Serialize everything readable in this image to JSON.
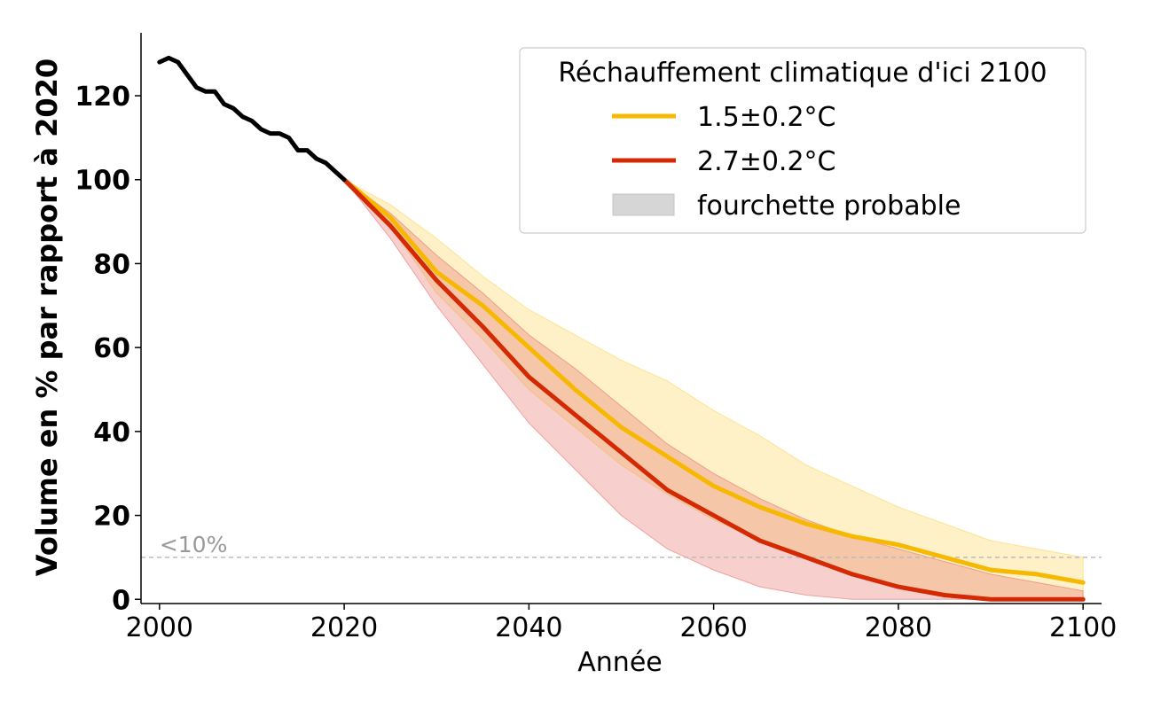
{
  "chart_data": {
    "type": "line",
    "xlabel": "Année",
    "ylabel": "Volume en % par rapport à 2020",
    "xlim": [
      1998,
      2102
    ],
    "ylim": [
      -1,
      135
    ],
    "x_ticks": [
      "2000",
      "2020",
      "2040",
      "2060",
      "2080",
      "2100"
    ],
    "y_ticks": [
      "0",
      "20",
      "40",
      "60",
      "80",
      "100",
      "120"
    ],
    "grid": false,
    "legend": {
      "title": "Réchauffement climatique d'ici 2100",
      "placement": "top-right",
      "entries": [
        "1.5±0.2°C",
        "2.7±0.2°C",
        "fourchette probable"
      ]
    },
    "threshold": {
      "y": 10,
      "label": "<10%"
    },
    "historical": {
      "color": "#000000",
      "points": [
        [
          2000,
          128
        ],
        [
          2001,
          129
        ],
        [
          2002,
          128
        ],
        [
          2003,
          125
        ],
        [
          2004,
          122
        ],
        [
          2005,
          121
        ],
        [
          2006,
          121
        ],
        [
          2007,
          118
        ],
        [
          2008,
          117
        ],
        [
          2009,
          115
        ],
        [
          2010,
          114
        ],
        [
          2011,
          112
        ],
        [
          2012,
          111
        ],
        [
          2013,
          111
        ],
        [
          2014,
          110
        ],
        [
          2015,
          107
        ],
        [
          2016,
          107
        ],
        [
          2017,
          105
        ],
        [
          2018,
          104
        ],
        [
          2019,
          102
        ],
        [
          2020,
          100
        ]
      ]
    },
    "series": [
      {
        "name": "1.5±0.2°C",
        "color": "#F6B800",
        "band_color": "#FBD760",
        "points": [
          [
            2020,
            100
          ],
          [
            2025,
            91
          ],
          [
            2030,
            78
          ],
          [
            2035,
            70
          ],
          [
            2040,
            60
          ],
          [
            2045,
            50
          ],
          [
            2050,
            41
          ],
          [
            2055,
            34
          ],
          [
            2060,
            27
          ],
          [
            2065,
            22
          ],
          [
            2070,
            18
          ],
          [
            2075,
            15
          ],
          [
            2080,
            13
          ],
          [
            2085,
            10
          ],
          [
            2090,
            7
          ],
          [
            2095,
            6
          ],
          [
            2100,
            4
          ]
        ],
        "band_low": [
          [
            2020,
            100
          ],
          [
            2025,
            89
          ],
          [
            2030,
            73
          ],
          [
            2035,
            62
          ],
          [
            2040,
            50
          ],
          [
            2045,
            41
          ],
          [
            2050,
            32
          ],
          [
            2055,
            25
          ],
          [
            2060,
            19
          ],
          [
            2065,
            14
          ],
          [
            2070,
            10
          ],
          [
            2075,
            6
          ],
          [
            2080,
            3
          ],
          [
            2085,
            1
          ],
          [
            2090,
            0
          ],
          [
            2095,
            0
          ],
          [
            2100,
            0
          ]
        ],
        "band_high": [
          [
            2020,
            100
          ],
          [
            2025,
            94
          ],
          [
            2030,
            86
          ],
          [
            2035,
            77
          ],
          [
            2040,
            69
          ],
          [
            2045,
            63
          ],
          [
            2050,
            57
          ],
          [
            2055,
            52
          ],
          [
            2060,
            45
          ],
          [
            2065,
            39
          ],
          [
            2070,
            32
          ],
          [
            2075,
            27
          ],
          [
            2080,
            22
          ],
          [
            2085,
            18
          ],
          [
            2090,
            14
          ],
          [
            2095,
            12
          ],
          [
            2100,
            10
          ]
        ]
      },
      {
        "name": "2.7±0.2°C",
        "color": "#D42A04",
        "band_color": "#E87670",
        "points": [
          [
            2020,
            100
          ],
          [
            2025,
            89
          ],
          [
            2030,
            76
          ],
          [
            2035,
            65
          ],
          [
            2040,
            53
          ],
          [
            2045,
            44
          ],
          [
            2050,
            35
          ],
          [
            2055,
            26
          ],
          [
            2060,
            20
          ],
          [
            2065,
            14
          ],
          [
            2070,
            10
          ],
          [
            2075,
            6
          ],
          [
            2080,
            3
          ],
          [
            2085,
            1
          ],
          [
            2090,
            0
          ],
          [
            2095,
            0
          ],
          [
            2100,
            0
          ]
        ],
        "band_low": [
          [
            2020,
            100
          ],
          [
            2025,
            86
          ],
          [
            2030,
            70
          ],
          [
            2035,
            56
          ],
          [
            2040,
            42
          ],
          [
            2045,
            31
          ],
          [
            2050,
            20
          ],
          [
            2055,
            12
          ],
          [
            2060,
            7
          ],
          [
            2065,
            3
          ],
          [
            2070,
            1
          ],
          [
            2075,
            0
          ],
          [
            2080,
            0
          ],
          [
            2085,
            0
          ],
          [
            2090,
            0
          ],
          [
            2095,
            0
          ],
          [
            2100,
            0
          ]
        ],
        "band_high": [
          [
            2020,
            100
          ],
          [
            2025,
            92
          ],
          [
            2030,
            82
          ],
          [
            2035,
            73
          ],
          [
            2040,
            63
          ],
          [
            2045,
            55
          ],
          [
            2050,
            46
          ],
          [
            2055,
            37
          ],
          [
            2060,
            30
          ],
          [
            2065,
            24
          ],
          [
            2070,
            19
          ],
          [
            2075,
            15
          ],
          [
            2080,
            12
          ],
          [
            2085,
            9
          ],
          [
            2090,
            6
          ],
          [
            2095,
            4
          ],
          [
            2100,
            2
          ]
        ]
      }
    ]
  }
}
